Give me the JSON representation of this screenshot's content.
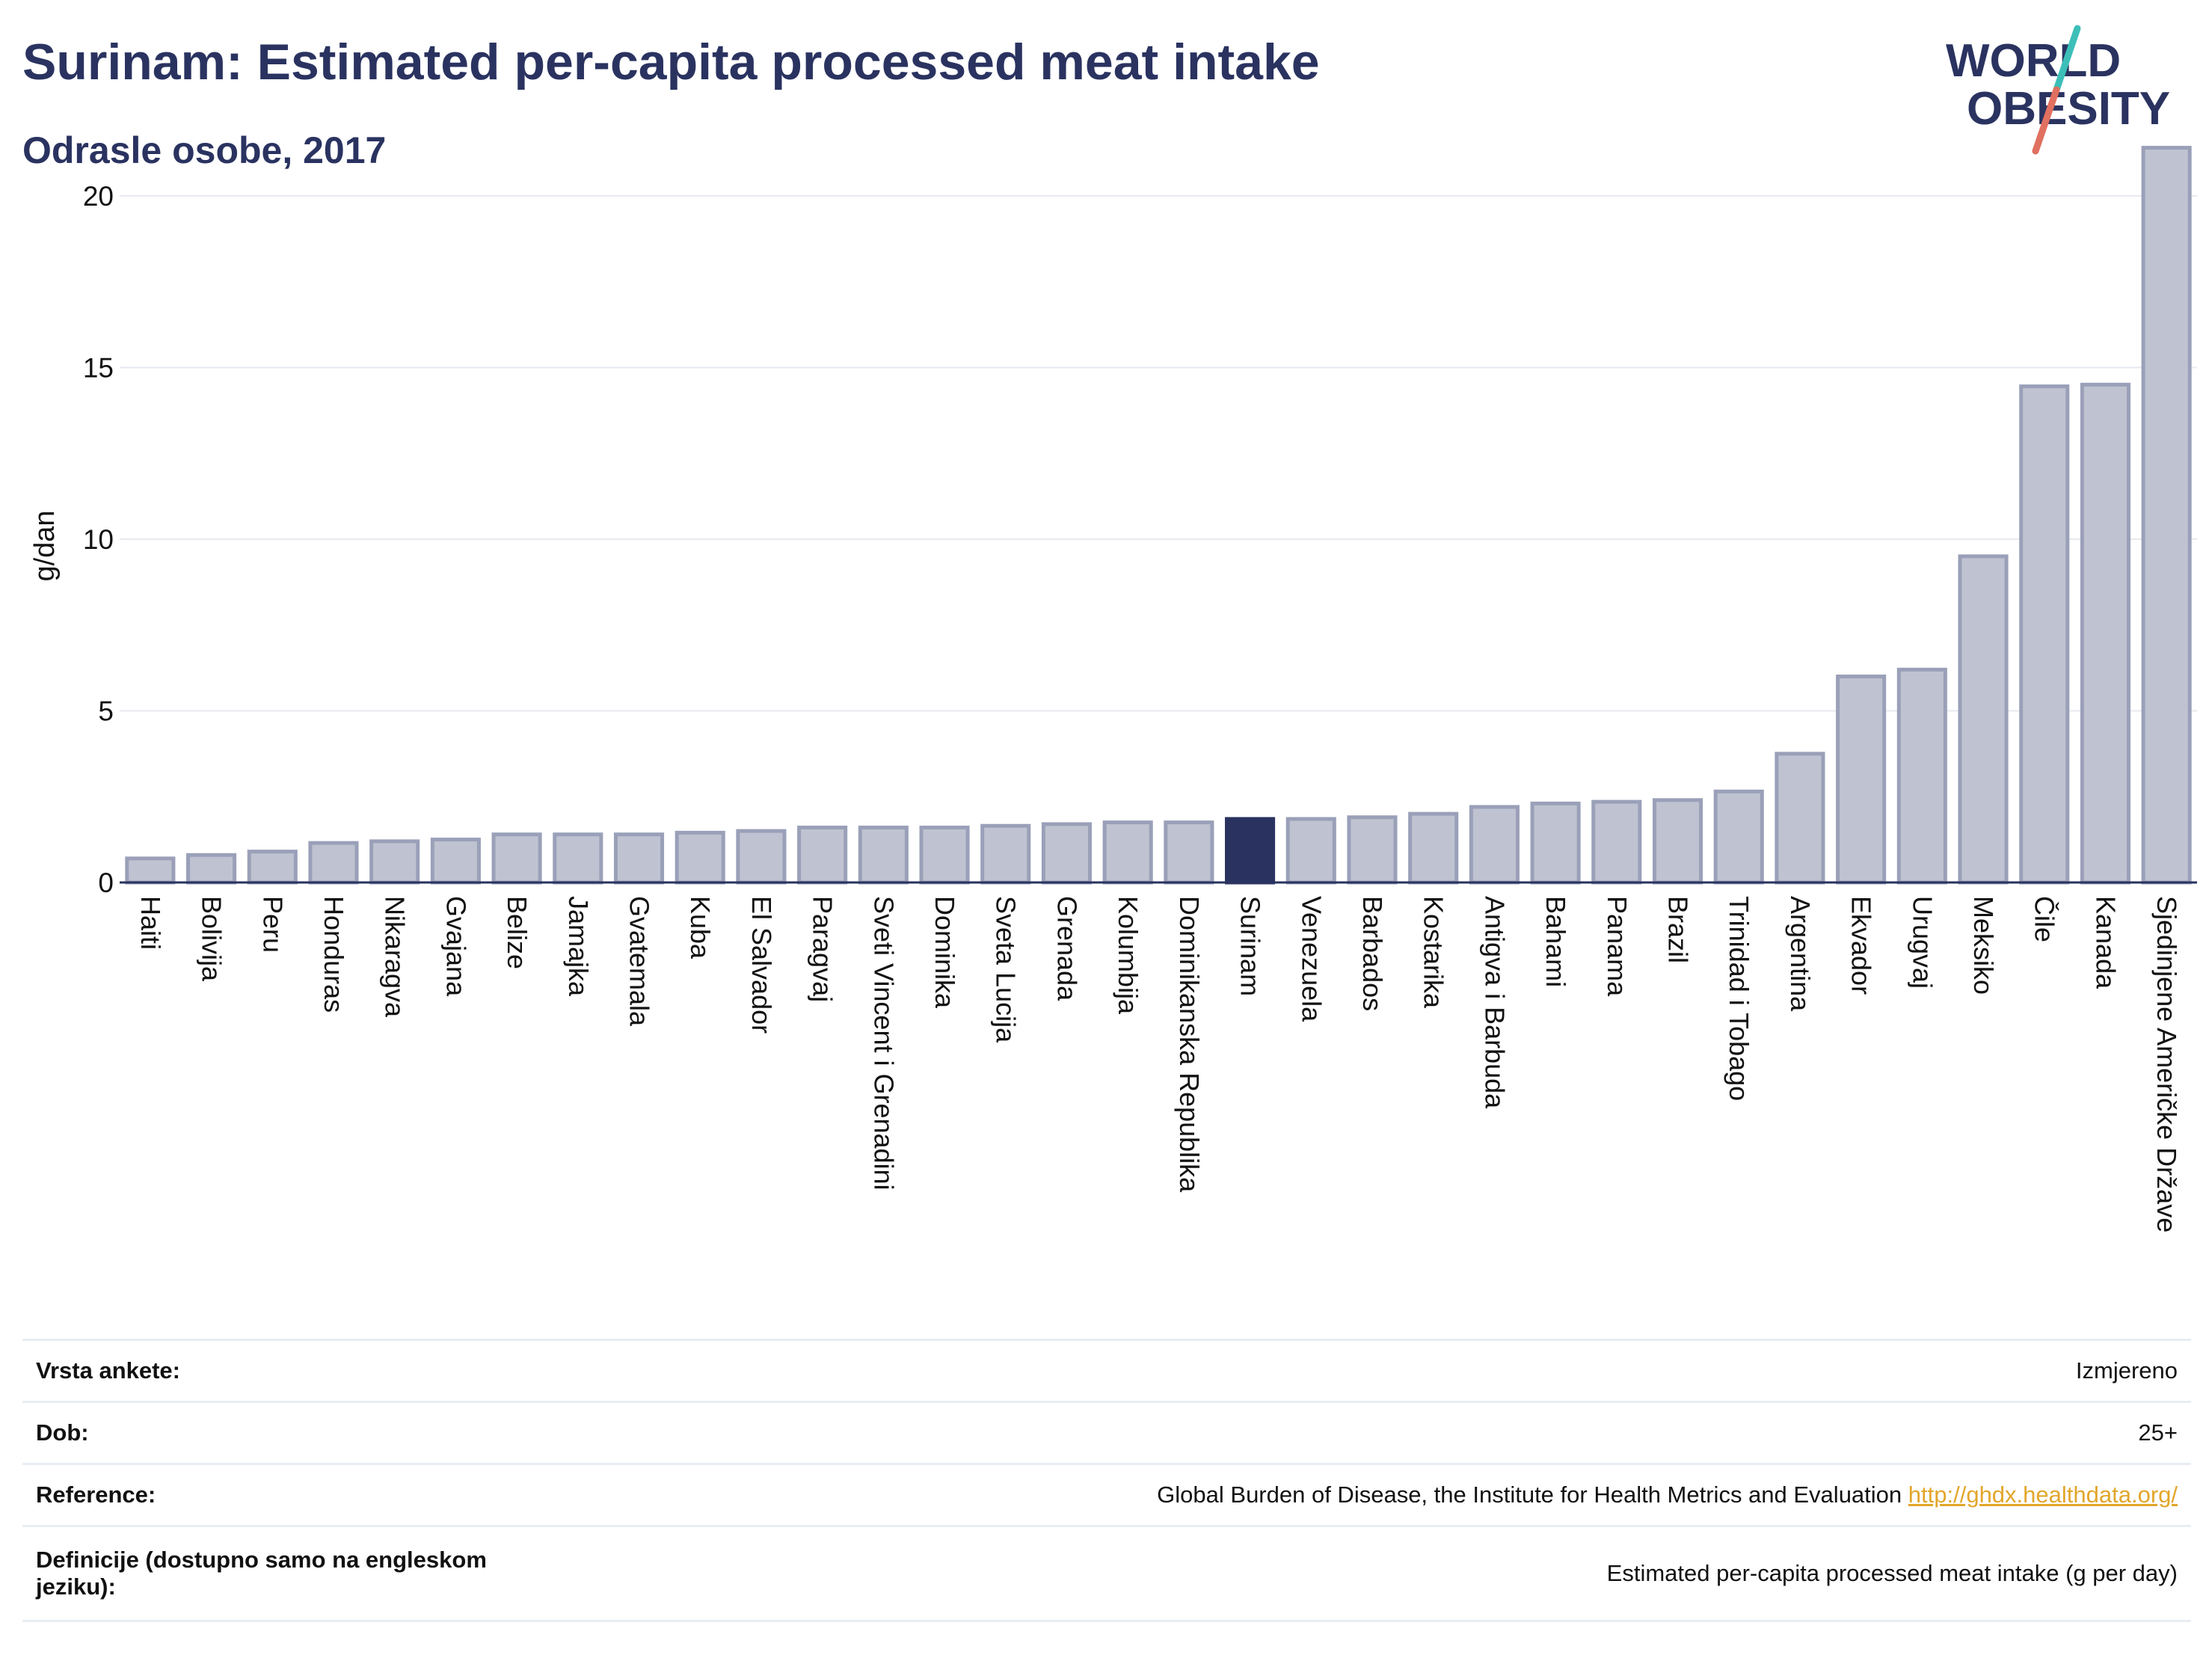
{
  "header": {
    "title": "Surinam: Estimated per-capita processed meat intake",
    "subtitle": "Odrasle osobe, 2017"
  },
  "logo": {
    "line1": "WORLD",
    "line2": "OBESITY"
  },
  "colors": {
    "highlight_bar": "#2a3360",
    "bar_fill": "#bfc3d1",
    "bar_stroke": "#9aa0b8",
    "link": "#e2a62b",
    "logo_slash_top": "#3cbfb8",
    "logo_slash_bottom": "#e0705f"
  },
  "chart_data": {
    "type": "bar",
    "ylabel": "g/dan",
    "ylim": [
      0,
      22
    ],
    "yticks": [
      0,
      5,
      10,
      15,
      20
    ],
    "grid": true,
    "highlight": "Surinam",
    "categories": [
      "Haiti",
      "Bolivija",
      "Peru",
      "Honduras",
      "Nikaragva",
      "Gvajana",
      "Belize",
      "Jamajka",
      "Gvatemala",
      "Kuba",
      "El Salvador",
      "Paragvaj",
      "Sveti Vincent i Grenadini",
      "Dominika",
      "Sveta Lucija",
      "Grenada",
      "Kolumbija",
      "Dominikanska Republika",
      "Surinam",
      "Venezuela",
      "Barbados",
      "Kostarika",
      "Antigva i Barbuda",
      "Bahami",
      "Panama",
      "Brazil",
      "Trinidad i Tobago",
      "Argentina",
      "Ekvador",
      "Urugvaj",
      "Meksiko",
      "Čile",
      "Kanada",
      "Sjedinjene Američke Države"
    ],
    "values": [
      0.7,
      0.8,
      0.9,
      1.15,
      1.2,
      1.25,
      1.4,
      1.4,
      1.4,
      1.45,
      1.5,
      1.6,
      1.6,
      1.6,
      1.65,
      1.7,
      1.75,
      1.75,
      1.85,
      1.85,
      1.9,
      2.0,
      2.2,
      2.3,
      2.35,
      2.4,
      2.65,
      3.75,
      6.0,
      6.2,
      9.5,
      14.45,
      14.5,
      21.4
    ]
  },
  "info_table": [
    {
      "label": "Vrsta ankete:",
      "value": "Izmjereno"
    },
    {
      "label": "Dob:",
      "value": "25+"
    },
    {
      "label": "Reference:",
      "value": "Global Burden of Disease, the Institute for Health Metrics and Evaluation",
      "link": "http://ghdx.healthdata.org/"
    },
    {
      "label": "Definicije (dostupno samo na engleskom jeziku):",
      "value": "Estimated per-capita processed meat intake (g per day)"
    }
  ]
}
